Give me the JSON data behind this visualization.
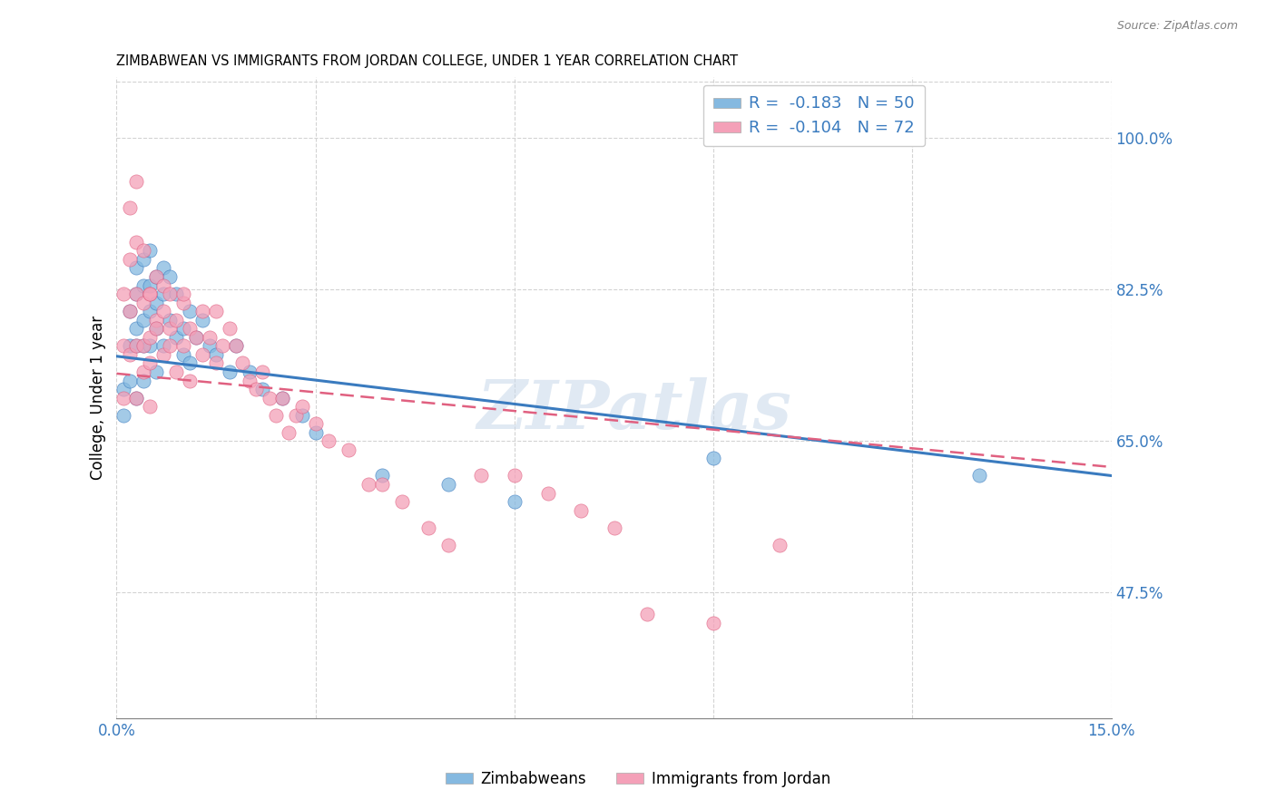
{
  "title": "ZIMBABWEAN VS IMMIGRANTS FROM JORDAN COLLEGE, UNDER 1 YEAR CORRELATION CHART",
  "source": "Source: ZipAtlas.com",
  "ylabel": "College, Under 1 year",
  "xmin": 0.0,
  "xmax": 0.15,
  "ymin": 0.33,
  "ymax": 1.07,
  "yticks": [
    0.475,
    0.65,
    0.825,
    1.0
  ],
  "ytick_labels": [
    "47.5%",
    "65.0%",
    "82.5%",
    "100.0%"
  ],
  "xticks": [
    0.0,
    0.03,
    0.06,
    0.09,
    0.12,
    0.15
  ],
  "xtick_labels": [
    "0.0%",
    "",
    "",
    "",
    "",
    "15.0%"
  ],
  "legend_r1": "R = -0.183",
  "legend_n1": "N = 50",
  "legend_r2": "R = -0.104",
  "legend_n2": "N = 72",
  "color_blue": "#85b9e0",
  "color_pink": "#f4a0b8",
  "color_blue_line": "#3a7bbf",
  "color_pink_line": "#e06080",
  "watermark": "ZIPatlas",
  "zim_x": [
    0.001,
    0.001,
    0.002,
    0.002,
    0.002,
    0.003,
    0.003,
    0.003,
    0.003,
    0.003,
    0.004,
    0.004,
    0.004,
    0.004,
    0.004,
    0.005,
    0.005,
    0.005,
    0.005,
    0.006,
    0.006,
    0.006,
    0.006,
    0.007,
    0.007,
    0.007,
    0.008,
    0.008,
    0.009,
    0.009,
    0.01,
    0.01,
    0.011,
    0.011,
    0.012,
    0.013,
    0.014,
    0.015,
    0.017,
    0.018,
    0.02,
    0.022,
    0.025,
    0.028,
    0.03,
    0.04,
    0.05,
    0.06,
    0.09,
    0.13
  ],
  "zim_y": [
    0.71,
    0.68,
    0.76,
    0.8,
    0.72,
    0.76,
    0.78,
    0.7,
    0.85,
    0.82,
    0.83,
    0.79,
    0.76,
    0.72,
    0.86,
    0.83,
    0.8,
    0.87,
    0.76,
    0.84,
    0.81,
    0.78,
    0.73,
    0.85,
    0.82,
    0.76,
    0.84,
    0.79,
    0.82,
    0.77,
    0.75,
    0.78,
    0.8,
    0.74,
    0.77,
    0.79,
    0.76,
    0.75,
    0.73,
    0.76,
    0.73,
    0.71,
    0.7,
    0.68,
    0.66,
    0.61,
    0.6,
    0.58,
    0.63,
    0.61
  ],
  "jor_x": [
    0.001,
    0.001,
    0.001,
    0.002,
    0.002,
    0.002,
    0.002,
    0.003,
    0.003,
    0.003,
    0.003,
    0.003,
    0.004,
    0.004,
    0.004,
    0.004,
    0.005,
    0.005,
    0.005,
    0.005,
    0.005,
    0.006,
    0.006,
    0.006,
    0.007,
    0.007,
    0.007,
    0.008,
    0.008,
    0.008,
    0.009,
    0.009,
    0.01,
    0.01,
    0.01,
    0.011,
    0.011,
    0.012,
    0.013,
    0.013,
    0.014,
    0.015,
    0.015,
    0.016,
    0.017,
    0.018,
    0.019,
    0.02,
    0.021,
    0.022,
    0.023,
    0.024,
    0.025,
    0.026,
    0.027,
    0.028,
    0.03,
    0.032,
    0.035,
    0.038,
    0.04,
    0.043,
    0.047,
    0.05,
    0.055,
    0.06,
    0.065,
    0.07,
    0.075,
    0.08,
    0.09,
    0.1
  ],
  "jor_y": [
    0.7,
    0.76,
    0.82,
    0.86,
    0.8,
    0.75,
    0.92,
    0.88,
    0.82,
    0.76,
    0.7,
    0.95,
    0.87,
    0.81,
    0.76,
    0.73,
    0.82,
    0.77,
    0.74,
    0.69,
    0.82,
    0.79,
    0.84,
    0.78,
    0.8,
    0.75,
    0.83,
    0.76,
    0.82,
    0.78,
    0.73,
    0.79,
    0.81,
    0.76,
    0.82,
    0.78,
    0.72,
    0.77,
    0.8,
    0.75,
    0.77,
    0.8,
    0.74,
    0.76,
    0.78,
    0.76,
    0.74,
    0.72,
    0.71,
    0.73,
    0.7,
    0.68,
    0.7,
    0.66,
    0.68,
    0.69,
    0.67,
    0.65,
    0.64,
    0.6,
    0.6,
    0.58,
    0.55,
    0.53,
    0.61,
    0.61,
    0.59,
    0.57,
    0.55,
    0.45,
    0.44,
    0.53
  ],
  "zim_line_x0": 0.0,
  "zim_line_y0": 0.748,
  "zim_line_x1": 0.15,
  "zim_line_y1": 0.61,
  "jor_line_x0": 0.0,
  "jor_line_y0": 0.728,
  "jor_line_x1": 0.15,
  "jor_line_y1": 0.62
}
